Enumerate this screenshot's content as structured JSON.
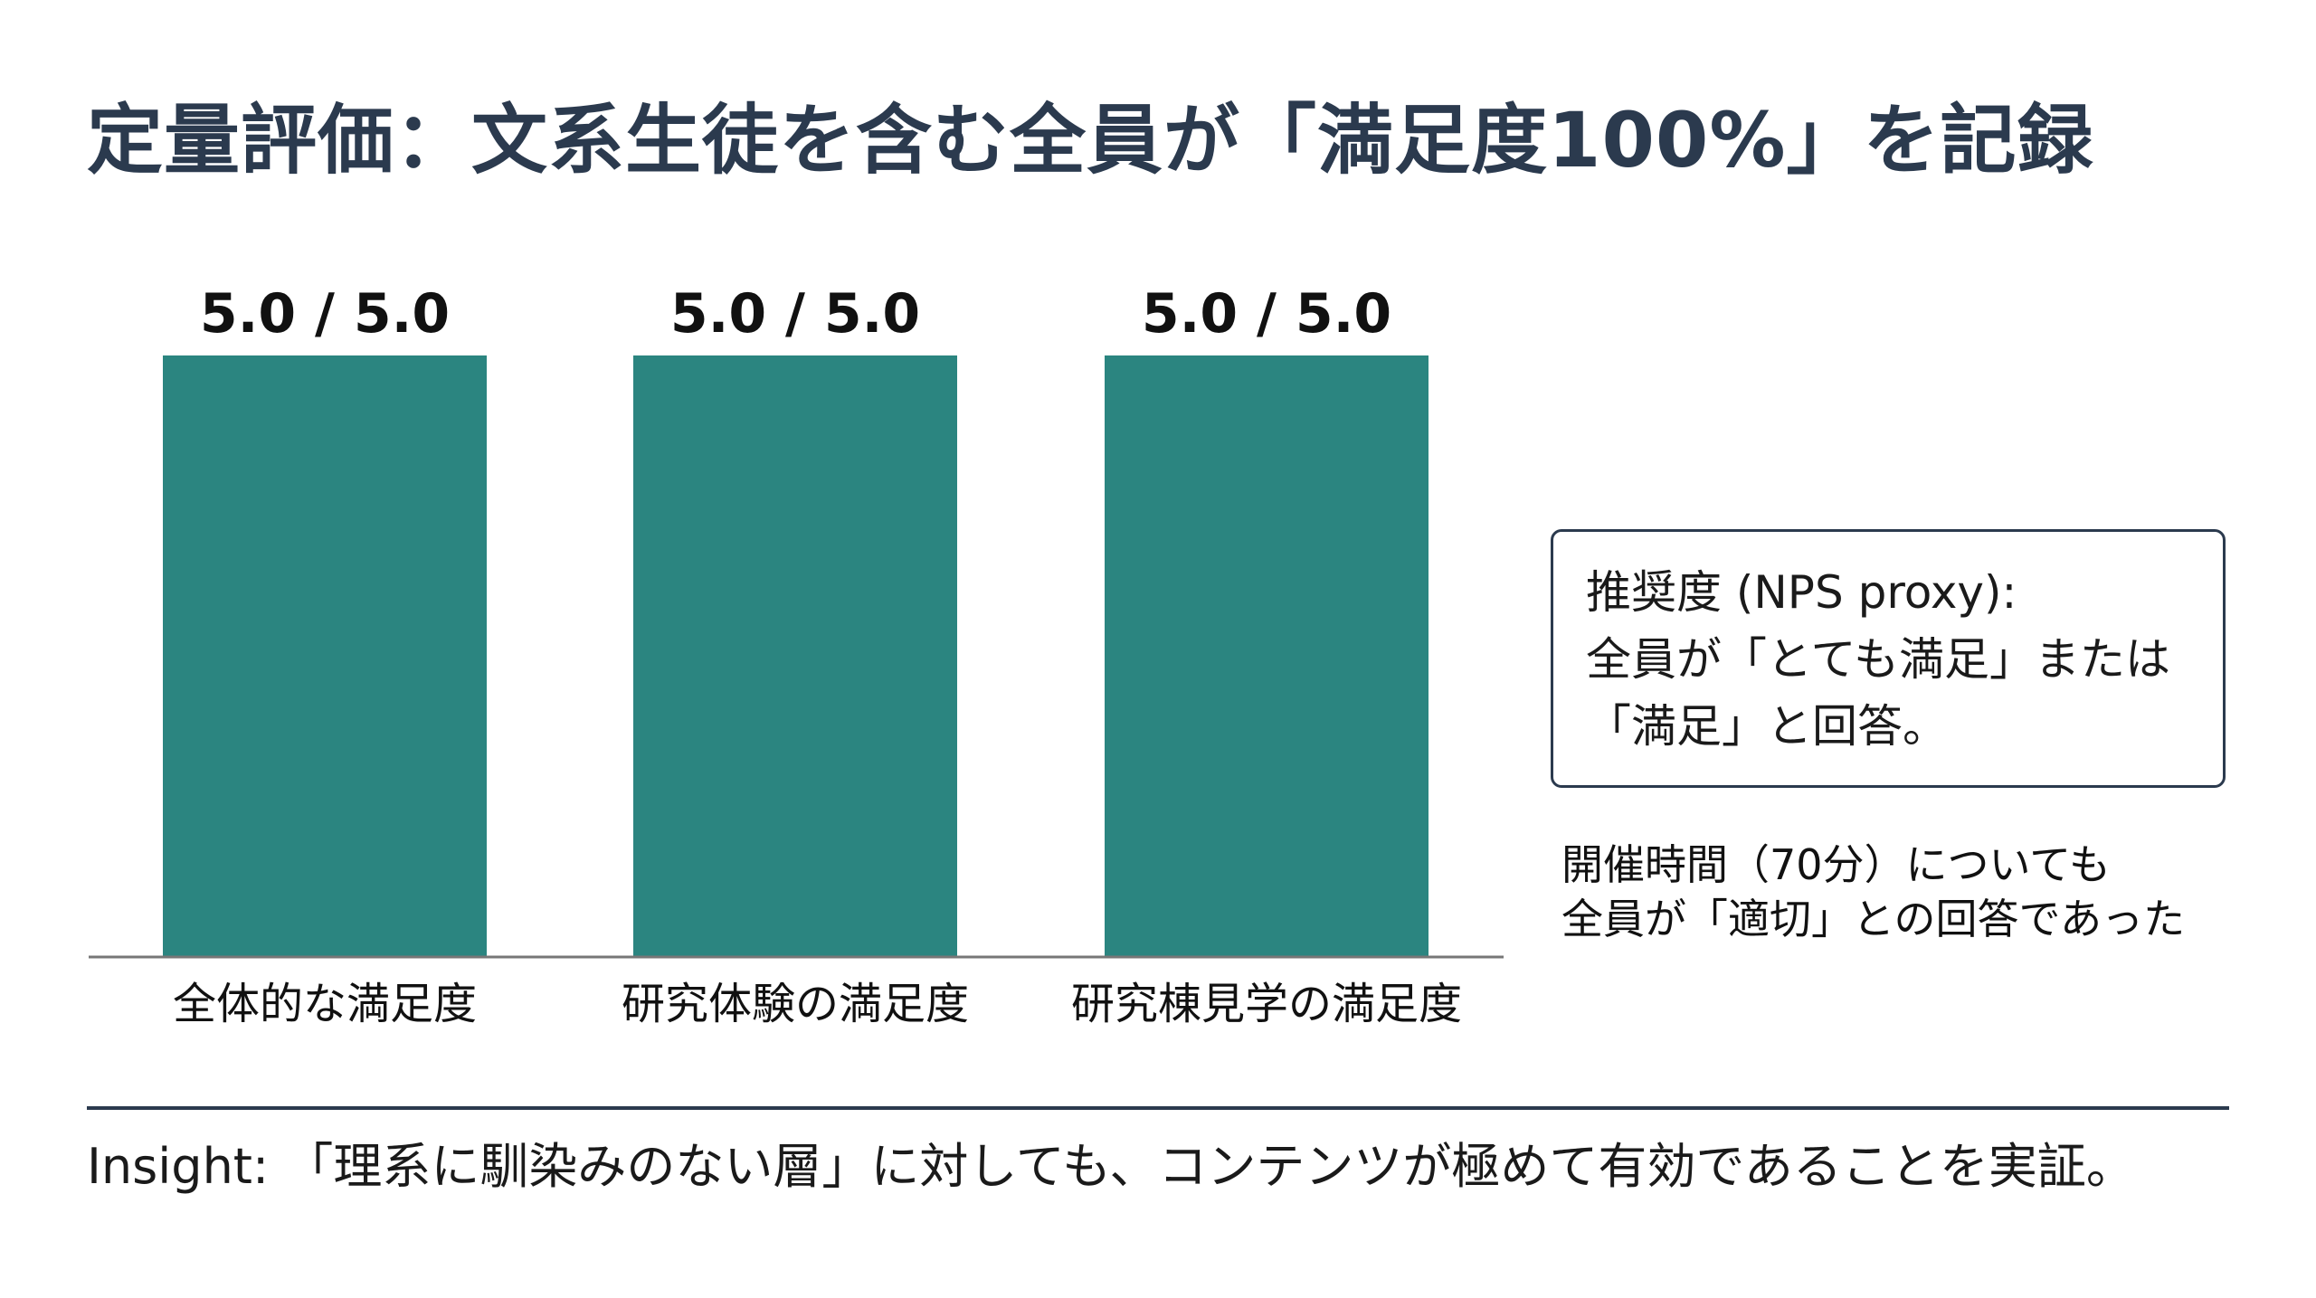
{
  "title": "定量評価：文系生徒を含む全員が「満足度100%」を記録",
  "chart_data": {
    "type": "bar",
    "categories": [
      "全体的な満足度",
      "研究体験の満足度",
      "研究棟見学の満足度"
    ],
    "values": [
      5.0,
      5.0,
      5.0
    ],
    "data_labels": [
      "5.0 / 5.0",
      "5.0 / 5.0",
      "5.0 / 5.0"
    ],
    "ylim": [
      0,
      5.0
    ],
    "grid": false,
    "legend": "none",
    "bar_color": "#2b8580",
    "axis_color": "#777777",
    "xlabel": "",
    "ylabel": ""
  },
  "info_box": {
    "line1": "推奨度 (NPS proxy):",
    "line2": "全員が「とても満足」または",
    "line3": "「満足」と回答。"
  },
  "note": {
    "line1": "開催時間（70分）についても",
    "line2": "全員が「適切」との回答であった"
  },
  "insight": "Insight: 「理系に馴染みのない層」に対しても、コンテンツが極めて有効であることを実証。",
  "colors": {
    "title": "#2b3a4e",
    "bar": "#2b8580",
    "divider": "#2b3a4e"
  }
}
